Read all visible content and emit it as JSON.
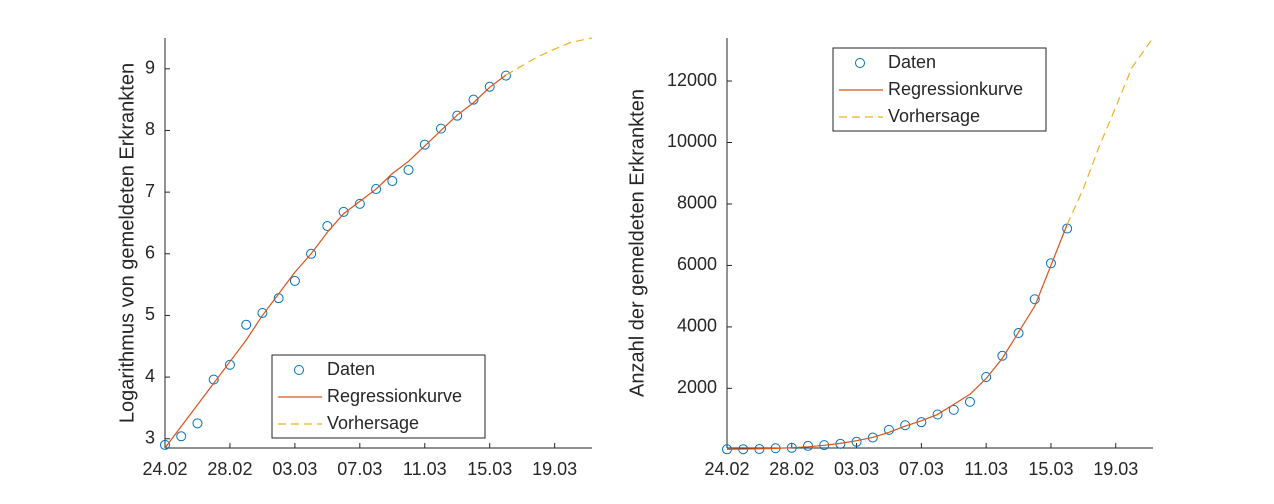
{
  "chart_data": [
    {
      "type": "line",
      "ylabel": "Logarithmus von gemeldeten Erkrankten",
      "xlim": [
        0,
        26.3
      ],
      "ylim": [
        2.85,
        9.5
      ],
      "xticks": [
        {
          "value": 0,
          "label": "24.02"
        },
        {
          "value": 4,
          "label": "28.02"
        },
        {
          "value": 8,
          "label": "03.03"
        },
        {
          "value": 12,
          "label": "07.03"
        },
        {
          "value": 16,
          "label": "11.03"
        },
        {
          "value": 20,
          "label": "15.03"
        },
        {
          "value": 24,
          "label": "19.03"
        }
      ],
      "yticks": [
        3,
        4,
        5,
        6,
        7,
        8,
        9
      ],
      "legend": "lower right",
      "series": [
        {
          "name": "Daten",
          "style": "marker",
          "color": "#0072BD",
          "x": [
            0,
            1,
            2,
            3,
            4,
            5,
            6,
            7,
            8,
            9,
            10,
            11,
            12,
            13,
            14,
            15,
            16,
            17,
            18,
            19,
            20,
            21
          ],
          "values": [
            2.9,
            3.04,
            3.25,
            3.96,
            4.2,
            4.85,
            5.04,
            5.28,
            5.56,
            6.0,
            6.45,
            6.68,
            6.81,
            7.05,
            7.18,
            7.36,
            7.77,
            8.03,
            8.24,
            8.5,
            8.71,
            8.89
          ]
        },
        {
          "name": "Regressionkurve",
          "style": "solid",
          "color": "#D95319",
          "x": [
            0,
            1,
            2,
            3,
            4,
            5,
            6,
            7,
            8,
            9,
            10,
            11,
            12,
            13,
            14,
            15,
            16,
            17,
            18,
            19,
            20,
            21
          ],
          "values": [
            2.85,
            3.2,
            3.55,
            3.9,
            4.25,
            4.6,
            5.0,
            5.35,
            5.7,
            6.0,
            6.35,
            6.65,
            6.85,
            7.05,
            7.3,
            7.5,
            7.75,
            8.0,
            8.25,
            8.45,
            8.7,
            8.9
          ]
        },
        {
          "name": "Vorhersage",
          "style": "dashed",
          "color": "#EDB120",
          "x": [
            21,
            22,
            23,
            24,
            25,
            26.3
          ],
          "values": [
            8.9,
            9.05,
            9.2,
            9.32,
            9.43,
            9.5
          ]
        }
      ]
    },
    {
      "type": "line",
      "ylabel": "Anzahl der gemeldeten Erkrankten",
      "xlim": [
        0,
        26.3
      ],
      "ylim": [
        60,
        13400
      ],
      "xticks": [
        {
          "value": 0,
          "label": "24.02"
        },
        {
          "value": 4,
          "label": "28.02"
        },
        {
          "value": 8,
          "label": "03.03"
        },
        {
          "value": 12,
          "label": "07.03"
        },
        {
          "value": 16,
          "label": "11.03"
        },
        {
          "value": 20,
          "label": "15.03"
        },
        {
          "value": 24,
          "label": "19.03"
        }
      ],
      "yticks": [
        2000,
        4000,
        6000,
        8000,
        10000,
        12000
      ],
      "legend": "upper left",
      "series": [
        {
          "name": "Daten",
          "style": "marker",
          "color": "#0072BD",
          "x": [
            0,
            1,
            2,
            3,
            4,
            5,
            6,
            7,
            8,
            9,
            10,
            11,
            12,
            13,
            14,
            15,
            16,
            17,
            18,
            19,
            20,
            21
          ],
          "values": [
            18,
            21,
            26,
            52,
            67,
            128,
            154,
            196,
            262,
            400,
            650,
            800,
            900,
            1150,
            1300,
            1560,
            2370,
            3060,
            3800,
            4900,
            6070,
            7200
          ]
        },
        {
          "name": "Regressionkurve",
          "style": "solid",
          "color": "#D95319",
          "x": [
            0,
            1,
            2,
            3,
            4,
            5,
            6,
            7,
            8,
            9,
            10,
            11,
            12,
            13,
            14,
            15,
            16,
            17,
            18,
            19,
            20,
            21
          ],
          "values": [
            17,
            25,
            35,
            49,
            70,
            99,
            148,
            211,
            299,
            403,
            572,
            773,
            944,
            1153,
            1480,
            1808,
            2321,
            2981,
            3827,
            4675,
            6003,
            7331
          ]
        },
        {
          "name": "Vorhersage",
          "style": "dashed",
          "color": "#EDB120",
          "x": [
            21,
            22,
            23,
            24,
            25,
            26.3
          ],
          "values": [
            7331,
            8500,
            9900,
            11150,
            12440,
            13400
          ]
        }
      ]
    }
  ]
}
